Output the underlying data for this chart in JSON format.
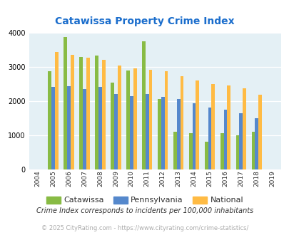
{
  "title": "Catawissa Property Crime Index",
  "years": [
    2004,
    2005,
    2006,
    2007,
    2008,
    2009,
    2010,
    2011,
    2012,
    2013,
    2014,
    2015,
    2016,
    2017,
    2018,
    2019
  ],
  "catawissa": [
    0,
    2880,
    3870,
    3300,
    3330,
    2550,
    2900,
    3760,
    2060,
    1100,
    1050,
    800,
    1060,
    1000,
    1100,
    0
  ],
  "pennsylvania": [
    0,
    2420,
    2430,
    2360,
    2420,
    2200,
    2150,
    2200,
    2130,
    2060,
    1940,
    1800,
    1750,
    1640,
    1490,
    0
  ],
  "national": [
    0,
    3430,
    3360,
    3280,
    3220,
    3040,
    2950,
    2910,
    2870,
    2720,
    2600,
    2490,
    2450,
    2380,
    2180,
    0
  ],
  "catawissa_color": "#88bb44",
  "pennsylvania_color": "#5588cc",
  "national_color": "#ffbb44",
  "bg_color": "#e4f0f5",
  "plot_bg": "#e8f4f8",
  "ylim": [
    0,
    4000
  ],
  "legend_labels": [
    "Catawissa",
    "Pennsylvania",
    "National"
  ],
  "footnote1": "Crime Index corresponds to incidents per 100,000 inhabitants",
  "footnote2": "© 2025 CityRating.com - https://www.cityrating.com/crime-statistics/",
  "title_color": "#1a6dcc",
  "footnote1_color": "#333333",
  "footnote2_color": "#aaaaaa",
  "bar_width": 0.22,
  "figsize": [
    4.06,
    3.3
  ],
  "dpi": 100
}
